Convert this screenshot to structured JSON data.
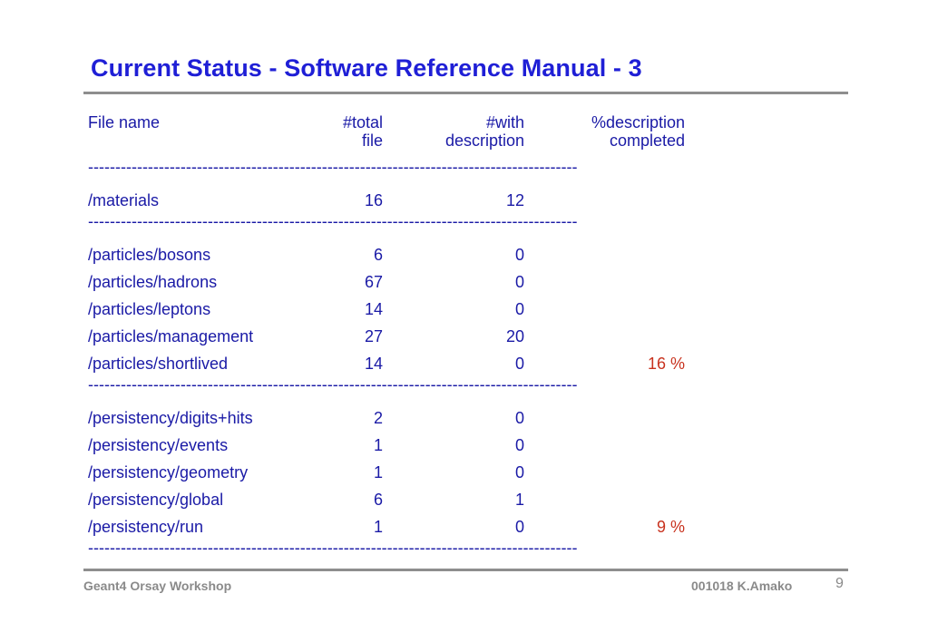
{
  "title": "Current Status - Software Reference Manual - 3",
  "table": {
    "headers": {
      "file_name": "File name",
      "total_line1": "#total",
      "total_line2": "file",
      "with_line1": "#with",
      "with_line2": "description",
      "pct_line1": "%description",
      "pct_line2": "completed"
    },
    "separator": "------------------------------------------------------------------------------------------",
    "groups": [
      {
        "rows": [
          {
            "name": "/materials",
            "total": "16",
            "with": "12",
            "pct": ""
          }
        ]
      },
      {
        "rows": [
          {
            "name": "/particles/bosons",
            "total": "6",
            "with": "0",
            "pct": ""
          },
          {
            "name": "/particles/hadrons",
            "total": "67",
            "with": "0",
            "pct": ""
          },
          {
            "name": "/particles/leptons",
            "total": "14",
            "with": "0",
            "pct": ""
          },
          {
            "name": "/particles/management",
            "total": "27",
            "with": "20",
            "pct": ""
          },
          {
            "name": "/particles/shortlived",
            "total": "14",
            "with": "0",
            "pct": "16 %"
          }
        ]
      },
      {
        "rows": [
          {
            "name": "/persistency/digits+hits",
            "total": "2",
            "with": "0",
            "pct": ""
          },
          {
            "name": "/persistency/events",
            "total": "1",
            "with": "0",
            "pct": ""
          },
          {
            "name": "/persistency/geometry",
            "total": "1",
            "with": "0",
            "pct": ""
          },
          {
            "name": "/persistency/global",
            "total": "6",
            "with": "1",
            "pct": ""
          },
          {
            "name": "/persistency/run",
            "total": "1",
            "with": "0",
            "pct": "9 %"
          }
        ]
      }
    ]
  },
  "footer": {
    "left": "Geant4 Orsay Workshop",
    "right": "001018  K.Amako",
    "page": "9"
  },
  "colors": {
    "title": "#1f1fd6",
    "body_text": "#1a1aa6",
    "percent": "#c8321e",
    "rule": "#8e8e8e",
    "footer": "#8a8a8a"
  }
}
